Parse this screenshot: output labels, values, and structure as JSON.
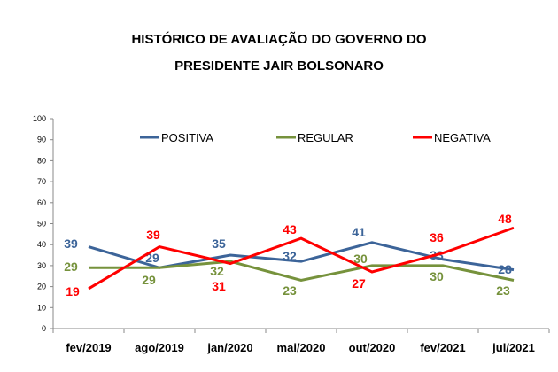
{
  "chart_data": {
    "type": "line",
    "title": "HISTÓRICO DE AVALIAÇÃO DO GOVERNO DO",
    "subtitle": "PRESIDENTE JAIR BOLSONARO",
    "categories": [
      "fev/2019",
      "ago/2019",
      "jan/2020",
      "mai/2020",
      "out/2020",
      "fev/2021",
      "jul/2021"
    ],
    "ylim": [
      0,
      100
    ],
    "yticks": [
      "0",
      "10",
      "20",
      "30",
      "40",
      "50",
      "60",
      "70",
      "80",
      "90",
      "100"
    ],
    "grid": false,
    "legend_position": "top",
    "series": [
      {
        "name": "POSITIVA",
        "color": "#3c6499",
        "values": [
          39,
          29,
          35,
          32,
          41,
          33,
          28
        ]
      },
      {
        "name": "REGULAR",
        "color": "#76923c",
        "values": [
          29,
          29,
          32,
          23,
          30,
          30,
          23
        ]
      },
      {
        "name": "NEGATIVA",
        "color": "#ff0000",
        "values": [
          19,
          39,
          31,
          43,
          27,
          36,
          48
        ]
      }
    ]
  }
}
